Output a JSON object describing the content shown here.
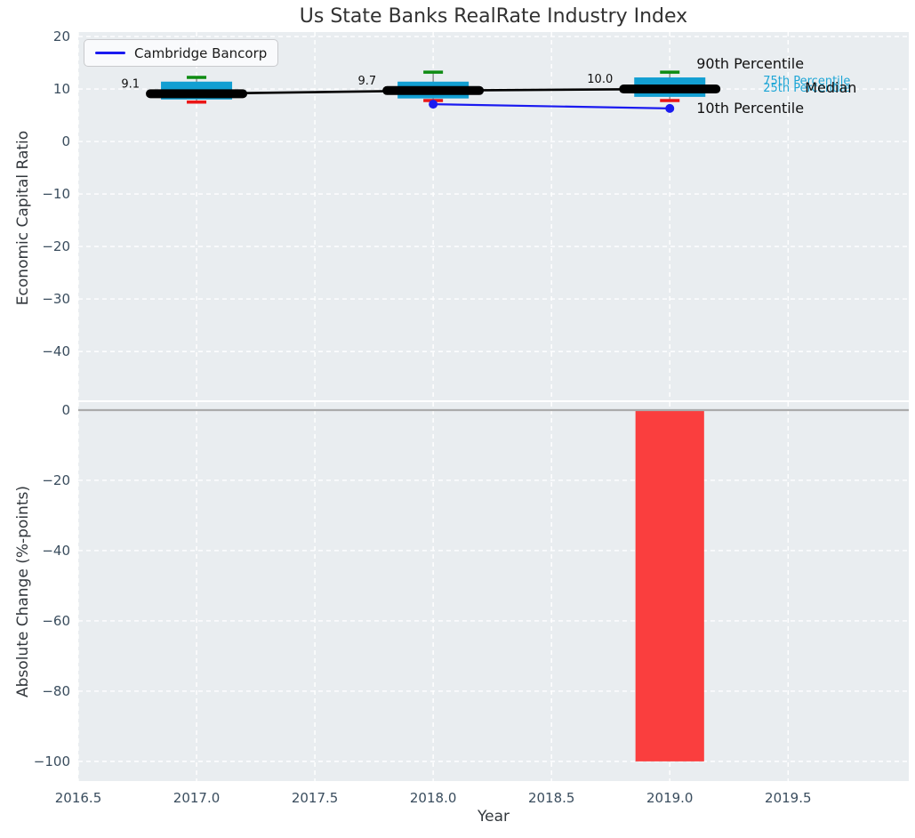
{
  "colors": {
    "plot_bg": "#e9edf0",
    "grid": "#ffffff",
    "tick": "#3a4d5e",
    "zero_line": "#ababab",
    "whisker": "#808080",
    "median_line": "#000000",
    "value_label": "#111111"
  },
  "chart_data": [
    {
      "type": "boxplot",
      "title": "Us State Banks RealRate Industry Index",
      "ylabel": "Economic Capital Ratio",
      "xlabel": "Year",
      "categories": [
        2017,
        2018,
        2019
      ],
      "series": [
        {
          "name": "90th Percentile",
          "values": [
            12.2,
            13.2,
            13.2
          ],
          "color": "#0e8b12"
        },
        {
          "name": "75th Percentile",
          "values": [
            11.4,
            11.4,
            12.2
          ],
          "color": "#129fd2"
        },
        {
          "name": "Median",
          "values": [
            9.1,
            9.7,
            10.0
          ],
          "color": "#000000"
        },
        {
          "name": "25th Percentile",
          "values": [
            8.0,
            8.2,
            8.5
          ],
          "color": "#129fd2"
        },
        {
          "name": "10th Percentile",
          "values": [
            7.5,
            7.8,
            7.8
          ],
          "color": "#ea1515"
        },
        {
          "name": "Cambridge Bancorp",
          "values": [
            null,
            7.1,
            6.3
          ],
          "color": "#1a1af0"
        }
      ],
      "median_labels": [
        "9.1",
        "9.7",
        "10.0"
      ],
      "legend": [
        {
          "label": "Cambridge Bancorp",
          "color": "#1a1af0"
        }
      ],
      "legend_position": "upper left",
      "annotations": [
        {
          "text": "90th Percentile",
          "color": "#111111",
          "size": 16
        },
        {
          "text": "75th Percentile",
          "color": "#1ea6d6",
          "size": 13
        },
        {
          "text": "25th Percentile",
          "color": "#1ea6d6",
          "size": 13
        },
        {
          "text": "Median",
          "color": "#111111",
          "size": 16
        },
        {
          "text": "10th Percentile",
          "color": "#111111",
          "size": 16
        }
      ],
      "xticks": [
        2016.5,
        2017.0,
        2017.5,
        2018.0,
        2018.5,
        2019.0,
        2019.5
      ],
      "xtick_labels": [
        "2016.5",
        "2017.0",
        "2017.5",
        "2018.0",
        "2018.5",
        "2019.0",
        "2019.5"
      ],
      "yticks": [
        20,
        10,
        0,
        -10,
        -20,
        -30,
        -40
      ],
      "ytick_labels": [
        "20",
        "10",
        "0",
        "−10",
        "−20",
        "−30",
        "−40"
      ],
      "xlim": [
        2016.5,
        2020.01
      ],
      "ylim": [
        -49.3,
        20.85
      ],
      "grid": true
    },
    {
      "type": "bar",
      "ylabel": "Absolute Change (%-points)",
      "x": [
        2019
      ],
      "values": [
        -100
      ],
      "bar_color": "#fa3e3e",
      "bar_width_years": 0.29,
      "yticks": [
        0,
        -20,
        -40,
        -60,
        -80,
        -100
      ],
      "ytick_labels": [
        "0",
        "−20",
        "−40",
        "−60",
        "−80",
        "−100"
      ],
      "ylim": [
        -105.6,
        2.28
      ],
      "zero_line": true,
      "grid": true
    }
  ]
}
